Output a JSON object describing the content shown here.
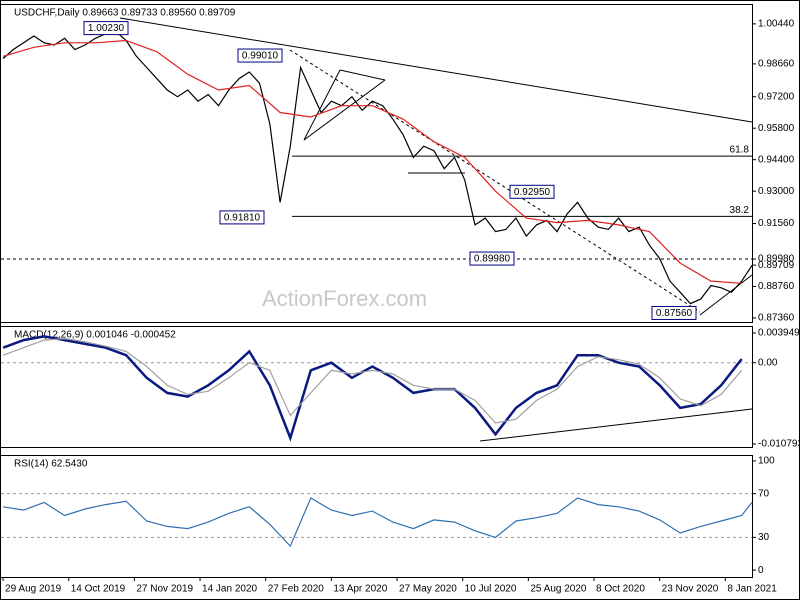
{
  "chart_data": [
    {
      "type": "line",
      "title": "USDCHF,Daily 0.89663 0.89733 0.89560 0.89709",
      "watermark": "ActionForex.com",
      "x": [
        0,
        5,
        10,
        15,
        20,
        25,
        30,
        35,
        40,
        45,
        50,
        55,
        60,
        65,
        70,
        75,
        80,
        85,
        90,
        95,
        100,
        105,
        110,
        115,
        120,
        125,
        130,
        135,
        140,
        145,
        150,
        155,
        160,
        165,
        170,
        175,
        180,
        185,
        190,
        195,
        200,
        205,
        210,
        215,
        220,
        225,
        230,
        235,
        240,
        245,
        250,
        255,
        260,
        265,
        270,
        275,
        280,
        285,
        290,
        295,
        300,
        305,
        310,
        315,
        320,
        325,
        330,
        335,
        340,
        345,
        350,
        355,
        360,
        365
      ],
      "series": [
        {
          "color": "#000000",
          "values": [
            0.989,
            0.993,
            0.996,
            0.999,
            0.996,
            0.995,
            0.998,
            0.993,
            0.995,
            0.998,
            1.0,
            1.001,
            0.997,
            0.99,
            0.985,
            0.98,
            0.975,
            0.972,
            0.975,
            0.97,
            0.973,
            0.968,
            0.975,
            0.98,
            0.983,
            0.978,
            0.96,
            0.925,
            0.95,
            0.985,
            0.975,
            0.965,
            0.97,
            0.968,
            0.972,
            0.966,
            0.97,
            0.968,
            0.962,
            0.955,
            0.945,
            0.95,
            0.948,
            0.94,
            0.945,
            0.935,
            0.915,
            0.918,
            0.912,
            0.913,
            0.918,
            0.91,
            0.915,
            0.917,
            0.912,
            0.92,
            0.925,
            0.918,
            0.914,
            0.913,
            0.918,
            0.912,
            0.914,
            0.906,
            0.9,
            0.89,
            0.885,
            0.88,
            0.882,
            0.888,
            0.887,
            0.885,
            0.89,
            0.897
          ]
        },
        {
          "color": "#e02020",
          "x": [
            0,
            15,
            30,
            45,
            60,
            75,
            90,
            105,
            120,
            135,
            150,
            165,
            180,
            195,
            210,
            225,
            240,
            255,
            270,
            285,
            300,
            315,
            330,
            345,
            360
          ],
          "values": [
            0.99,
            0.994,
            0.996,
            0.996,
            0.997,
            0.992,
            0.982,
            0.975,
            0.977,
            0.965,
            0.963,
            0.968,
            0.968,
            0.962,
            0.952,
            0.945,
            0.93,
            0.918,
            0.916,
            0.917,
            0.915,
            0.912,
            0.898,
            0.89,
            0.889
          ]
        }
      ],
      "annotations": [
        {
          "label": "1.00230",
          "value": 1.0023
        },
        {
          "label": "0.99010",
          "value": 0.9901
        },
        {
          "label": "0.91810",
          "value": 0.9181
        },
        {
          "label": "0.92950",
          "value": 0.9295
        },
        {
          "label": "0.89980",
          "value": 0.8998,
          "line": true
        },
        {
          "label": "0.87560",
          "value": 0.8756
        }
      ],
      "levels": [
        {
          "label": "61.8",
          "value": 0.9456
        },
        {
          "label": "38.2",
          "value": 0.9188
        }
      ],
      "xlim": [
        -1,
        365
      ],
      "ylim": [
        0.8718,
        1.0128
      ],
      "yticks": [
        {
          "value": 1.0044,
          "label": "1.00440"
        },
        {
          "value": 0.9866,
          "label": "0.98660"
        },
        {
          "value": 0.972,
          "label": "0.97200"
        },
        {
          "value": 0.958,
          "label": "0.95800"
        },
        {
          "value": 0.944,
          "label": "0.94400"
        },
        {
          "value": 0.93,
          "label": "0.93000"
        },
        {
          "value": 0.9156,
          "label": "0.91560"
        },
        {
          "value": 0.8998,
          "label": "0.89980"
        },
        {
          "value": 0.89709,
          "label": "0.89709"
        },
        {
          "value": 0.8876,
          "label": "0.88760"
        },
        {
          "value": 0.8736,
          "label": "0.87360"
        }
      ]
    },
    {
      "type": "line",
      "title": "MACD(12,26,9) 0.001046 -0.000452",
      "x": [
        0,
        10,
        20,
        30,
        40,
        50,
        60,
        70,
        80,
        90,
        100,
        110,
        120,
        130,
        140,
        150,
        160,
        170,
        180,
        190,
        200,
        210,
        220,
        230,
        240,
        250,
        260,
        270,
        280,
        290,
        300,
        310,
        320,
        330,
        340,
        350,
        360
      ],
      "series": [
        {
          "color": "#0a1a80",
          "values": [
            0.002,
            0.003,
            0.0035,
            0.003,
            0.0025,
            0.002,
            0.001,
            -0.002,
            -0.004,
            -0.0045,
            -0.003,
            -0.001,
            0.0015,
            -0.003,
            -0.01,
            -0.001,
            0.0,
            -0.002,
            -0.0005,
            -0.002,
            -0.004,
            -0.0035,
            -0.0035,
            -0.006,
            -0.0095,
            -0.006,
            -0.004,
            -0.003,
            0.001,
            0.001,
            0.0,
            -0.0005,
            -0.003,
            -0.006,
            -0.0055,
            -0.003,
            0.0005
          ]
        },
        {
          "color": "#a0a0a0",
          "values": [
            0.001,
            0.002,
            0.003,
            0.0032,
            0.0028,
            0.0022,
            0.0015,
            -0.0005,
            -0.003,
            -0.0042,
            -0.0038,
            -0.002,
            0.0,
            -0.001,
            -0.007,
            -0.004,
            -0.001,
            -0.0015,
            -0.001,
            -0.0015,
            -0.003,
            -0.0035,
            -0.0035,
            -0.005,
            -0.008,
            -0.0075,
            -0.005,
            -0.0035,
            -0.0005,
            0.0008,
            0.0004,
            -0.0002,
            -0.002,
            -0.0048,
            -0.0057,
            -0.0042,
            -0.001
          ]
        }
      ],
      "xlim": [
        -1,
        365
      ],
      "ylim": [
        -0.011191,
        0.004746
      ],
      "yticks": [
        0.003949,
        {
          "value": 0,
          "label": "0.00"
        },
        -0.010793
      ]
    },
    {
      "type": "line",
      "title": "RSI(14) 62.5430",
      "x": [
        0,
        10,
        20,
        30,
        40,
        50,
        60,
        70,
        80,
        90,
        100,
        110,
        120,
        130,
        140,
        150,
        160,
        170,
        180,
        190,
        200,
        210,
        220,
        230,
        240,
        250,
        260,
        270,
        280,
        290,
        300,
        310,
        320,
        330,
        340,
        350,
        360,
        365
      ],
      "series": [
        {
          "color": "#3070b0",
          "values": [
            58,
            55,
            62,
            50,
            56,
            60,
            63,
            45,
            40,
            38,
            44,
            52,
            58,
            42,
            22,
            66,
            55,
            50,
            54,
            44,
            38,
            46,
            44,
            36,
            30,
            45,
            48,
            52,
            66,
            60,
            58,
            54,
            46,
            34,
            40,
            45,
            50,
            62
          ]
        }
      ],
      "xlim": [
        -1,
        365
      ],
      "ylim": [
        -6.3,
        104.5
      ],
      "yticks": [
        100,
        70,
        30,
        0
      ],
      "xticks": [
        {
          "value": 0,
          "label": "29 Aug 2019"
        },
        {
          "value": 32,
          "label": "14 Oct 2019"
        },
        {
          "value": 64,
          "label": "27 Nov 2019"
        },
        {
          "value": 96,
          "label": "14 Jan 2020"
        },
        {
          "value": 128,
          "label": "27 Feb 2020"
        },
        {
          "value": 160,
          "label": "13 Apr 2020"
        },
        {
          "value": 192,
          "label": "27 May 2020"
        },
        {
          "value": 224,
          "label": "10 Jul 2020"
        },
        {
          "value": 256,
          "label": "25 Aug 2020"
        },
        {
          "value": 288,
          "label": "8 Oct 2020"
        },
        {
          "value": 320,
          "label": "23 Nov 2020"
        },
        {
          "value": 352,
          "label": "8 Jan 2021"
        }
      ]
    }
  ]
}
